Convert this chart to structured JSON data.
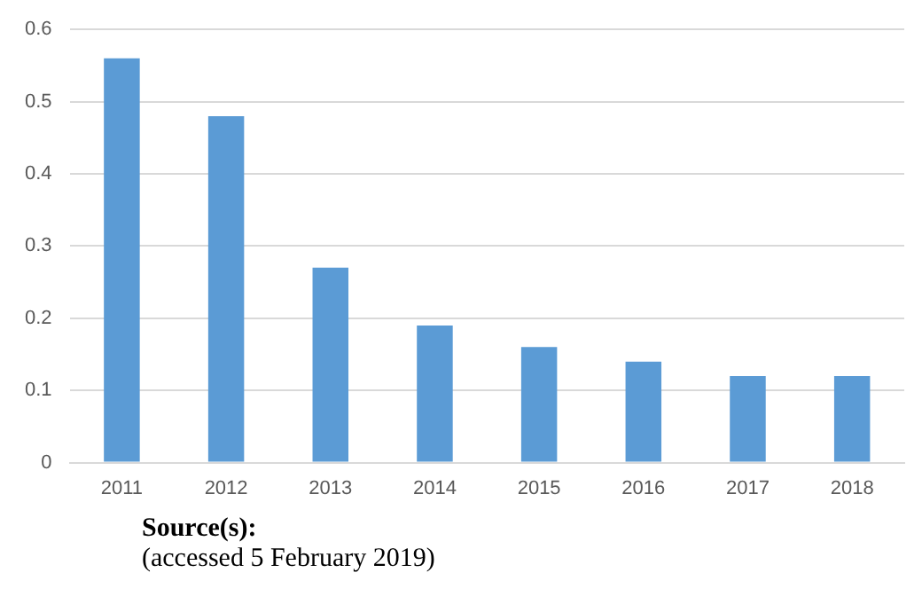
{
  "chart_data": {
    "type": "bar",
    "categories": [
      "2011",
      "2012",
      "2013",
      "2014",
      "2015",
      "2016",
      "2017",
      "2018"
    ],
    "values": [
      0.56,
      0.48,
      0.27,
      0.19,
      0.16,
      0.14,
      0.12,
      0.12
    ],
    "color": "#5b9bd5",
    "ylim": [
      0,
      0.6
    ],
    "yticks": [
      0,
      0.1,
      0.2,
      0.3,
      0.4,
      0.5,
      0.6
    ],
    "grid": "y",
    "annotations": [
      "Source(s):",
      "(accessed 5 February 2019)"
    ]
  }
}
